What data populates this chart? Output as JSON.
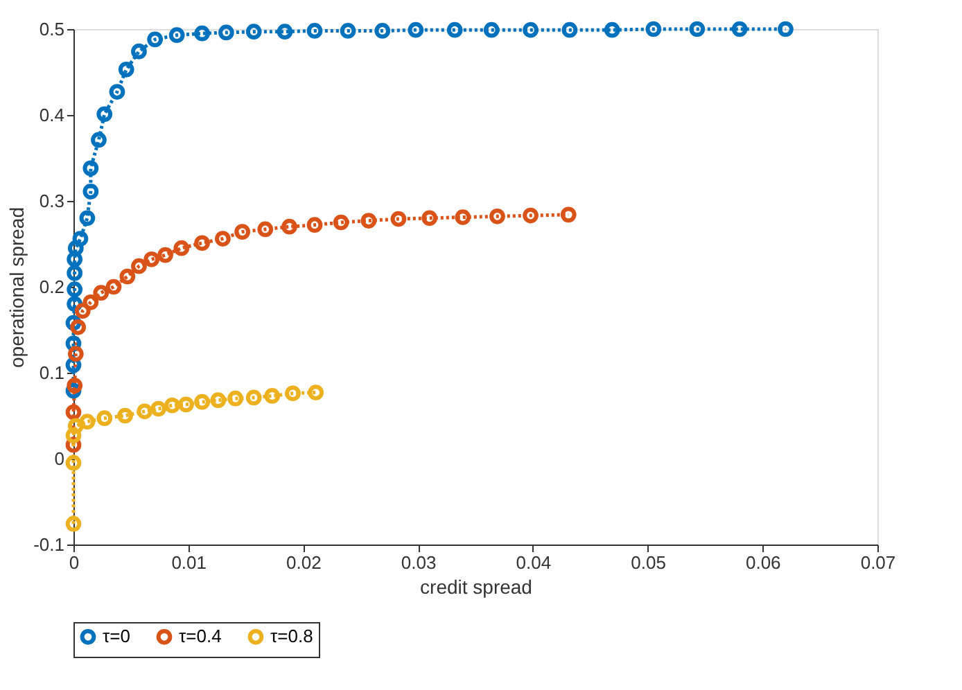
{
  "chart_data": {
    "type": "line",
    "xlabel": "credit spread",
    "ylabel": "operational spread",
    "xlim": [
      0,
      0.07
    ],
    "xticks": [
      0,
      0.01,
      0.02,
      0.03,
      0.04,
      0.05,
      0.06,
      0.07
    ],
    "ylim": [
      -0.1,
      0.5
    ],
    "yticks": [
      -0.1,
      0,
      0.1,
      0.2,
      0.3,
      0.4,
      0.5
    ],
    "grid": false,
    "legend": "bottom",
    "marker": "circle",
    "line_style": "dotted",
    "series": [
      {
        "name": "τ=0",
        "color": "#0072bd",
        "x": [
          0,
          0,
          0,
          0,
          0.0001,
          0.0001,
          0.0001,
          0.0001,
          0.0002,
          0.0006,
          0.0012,
          0.0015,
          0.0015,
          0.0022,
          0.0027,
          0.0038,
          0.0046,
          0.0057,
          0.0071,
          0.009,
          0.0112,
          0.0133,
          0.0157,
          0.0184,
          0.021,
          0.0239,
          0.0269,
          0.0298,
          0.0332,
          0.0364,
          0.0398,
          0.0432,
          0.0469,
          0.0505,
          0.0543,
          0.058,
          0.062
        ],
        "values": [
          0.079,
          0.109,
          0.134,
          0.158,
          0.18,
          0.197,
          0.216,
          0.232,
          0.245,
          0.256,
          0.28,
          0.311,
          0.338,
          0.371,
          0.401,
          0.427,
          0.453,
          0.474,
          0.488,
          0.493,
          0.495,
          0.496,
          0.497,
          0.497,
          0.498,
          0.498,
          0.498,
          0.499,
          0.499,
          0.499,
          0.499,
          0.499,
          0.499,
          0.5,
          0.5,
          0.5,
          0.5
        ]
      },
      {
        "name": "τ=0.4",
        "color": "#d95319",
        "x": [
          0,
          0,
          0.0001,
          0.0002,
          0.0004,
          0.0008,
          0.0015,
          0.0024,
          0.0035,
          0.0047,
          0.0057,
          0.0068,
          0.008,
          0.0094,
          0.0112,
          0.013,
          0.0147,
          0.0167,
          0.0188,
          0.021,
          0.0233,
          0.0257,
          0.0283,
          0.031,
          0.0339,
          0.0369,
          0.0398,
          0.0431
        ],
        "values": [
          0.016,
          0.054,
          0.085,
          0.122,
          0.153,
          0.172,
          0.182,
          0.193,
          0.2,
          0.212,
          0.224,
          0.232,
          0.237,
          0.245,
          0.251,
          0.256,
          0.264,
          0.267,
          0.27,
          0.272,
          0.275,
          0.277,
          0.279,
          0.28,
          0.281,
          0.282,
          0.283,
          0.284
        ]
      },
      {
        "name": "τ=0.8",
        "color": "#edb120",
        "x": [
          0,
          0,
          0,
          0.0002,
          0.0012,
          0.0027,
          0.0045,
          0.0062,
          0.0074,
          0.0086,
          0.0098,
          0.0112,
          0.0126,
          0.0141,
          0.0157,
          0.0173,
          0.0191,
          0.0211
        ],
        "values": [
          -0.076,
          -0.005,
          0.027,
          0.038,
          0.043,
          0.047,
          0.05,
          0.055,
          0.058,
          0.062,
          0.063,
          0.066,
          0.068,
          0.07,
          0.071,
          0.073,
          0.076,
          0.077
        ]
      }
    ]
  }
}
